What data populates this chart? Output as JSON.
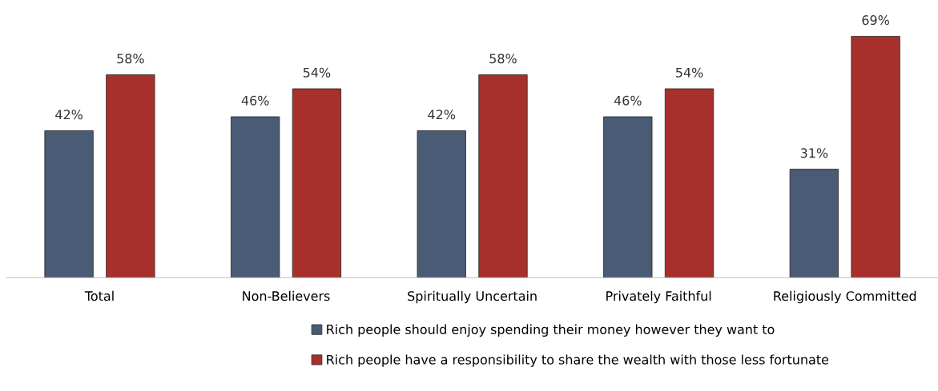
{
  "chart_data": {
    "type": "bar",
    "categories": [
      "Total",
      "Non-Believers",
      "Spiritually Uncertain",
      "Privately Faithful",
      "Religiously Committed"
    ],
    "series": [
      {
        "name": "Rich people should enjoy spending their money however they want to",
        "color": "#4a5b76",
        "values": [
          42,
          46,
          42,
          46,
          31
        ],
        "value_labels": [
          "42%",
          "46%",
          "42%",
          "46%",
          "31%"
        ]
      },
      {
        "name": "Rich people have a responsibility to share the wealth with those less fortunate",
        "color": "#a8302c",
        "values": [
          58,
          54,
          58,
          54,
          69
        ],
        "value_labels": [
          "58%",
          "54%",
          "58%",
          "54%",
          "69%"
        ]
      }
    ],
    "tick_labels": "x",
    "grid": false,
    "legend": "bottom"
  }
}
